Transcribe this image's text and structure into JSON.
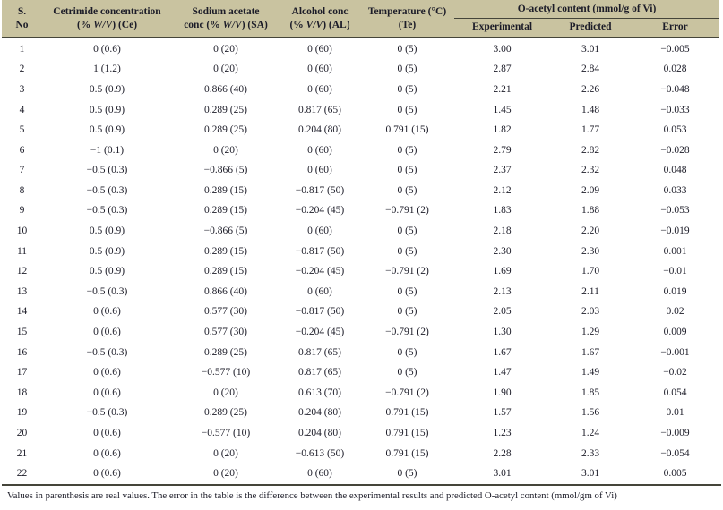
{
  "colors": {
    "header_bg": "#c9c3a0",
    "rule": "#45453a",
    "text": "#1c1c28",
    "body_bg": "#ffffff"
  },
  "table": {
    "header": {
      "col_sno": {
        "line1": "S.",
        "line2": "No"
      },
      "col_ce": {
        "line1": "Cetrimide concentration",
        "l2_pre": "(% ",
        "l2_italic": "W/V",
        "l2_post": ") (Ce)"
      },
      "col_sa": {
        "line1": "Sodium acetate",
        "l2_pre": "conc (% ",
        "l2_italic": "W/V",
        "l2_post": ") (SA)"
      },
      "col_al": {
        "line1": "Alcohol conc",
        "l2_pre": "(% ",
        "l2_italic": "V/V",
        "l2_post": ") (AL)"
      },
      "col_te": {
        "line1": "Temperature (°C)",
        "line2": "(Te)"
      },
      "group_oacetyl": "O-acetyl content (mmol/g of Vi)",
      "sub_experimental": "Experimental",
      "sub_predicted": "Predicted",
      "sub_error": "Error"
    },
    "rows": [
      {
        "sno": "1",
        "ce": "0 (0.6)",
        "sa": "0 (20)",
        "al": "0 (60)",
        "te": "0 (5)",
        "exp": "3.00",
        "pred": "3.01",
        "err": "−0.005"
      },
      {
        "sno": "2",
        "ce": "1 (1.2)",
        "sa": "0 (20)",
        "al": "0 (60)",
        "te": "0 (5)",
        "exp": "2.87",
        "pred": "2.84",
        "err": "0.028"
      },
      {
        "sno": "3",
        "ce": "0.5 (0.9)",
        "sa": "0.866 (40)",
        "al": "0 (60)",
        "te": "0 (5)",
        "exp": "2.21",
        "pred": "2.26",
        "err": "−0.048"
      },
      {
        "sno": "4",
        "ce": "0.5 (0.9)",
        "sa": "0.289 (25)",
        "al": "0.817 (65)",
        "te": "0 (5)",
        "exp": "1.45",
        "pred": "1.48",
        "err": "−0.033"
      },
      {
        "sno": "5",
        "ce": "0.5 (0.9)",
        "sa": "0.289 (25)",
        "al": "0.204 (80)",
        "te": "0.791 (15)",
        "exp": "1.82",
        "pred": "1.77",
        "err": "0.053"
      },
      {
        "sno": "6",
        "ce": "−1 (0.1)",
        "sa": "0 (20)",
        "al": "0 (60)",
        "te": "0 (5)",
        "exp": "2.79",
        "pred": "2.82",
        "err": "−0.028"
      },
      {
        "sno": "7",
        "ce": "−0.5 (0.3)",
        "sa": "−0.866 (5)",
        "al": "0 (60)",
        "te": "0 (5)",
        "exp": "2.37",
        "pred": "2.32",
        "err": "0.048"
      },
      {
        "sno": "8",
        "ce": "−0.5 (0.3)",
        "sa": "0.289 (15)",
        "al": "−0.817 (50)",
        "te": "0 (5)",
        "exp": "2.12",
        "pred": "2.09",
        "err": "0.033"
      },
      {
        "sno": "9",
        "ce": "−0.5 (0.3)",
        "sa": "0.289 (15)",
        "al": "−0.204 (45)",
        "te": "−0.791 (2)",
        "exp": "1.83",
        "pred": "1.88",
        "err": "−0.053"
      },
      {
        "sno": "10",
        "ce": "0.5 (0.9)",
        "sa": "−0.866 (5)",
        "al": "0 (60)",
        "te": "0 (5)",
        "exp": "2.18",
        "pred": "2.20",
        "err": "−0.019"
      },
      {
        "sno": "11",
        "ce": "0.5 (0.9)",
        "sa": "0.289 (15)",
        "al": "−0.817 (50)",
        "te": "0 (5)",
        "exp": "2.30",
        "pred": "2.30",
        "err": "0.001"
      },
      {
        "sno": "12",
        "ce": "0.5 (0.9)",
        "sa": "0.289 (15)",
        "al": "−0.204 (45)",
        "te": "−0.791 (2)",
        "exp": "1.69",
        "pred": "1.70",
        "err": "−0.01"
      },
      {
        "sno": "13",
        "ce": "−0.5 (0.3)",
        "sa": "0.866 (40)",
        "al": "0 (60)",
        "te": "0 (5)",
        "exp": "2.13",
        "pred": "2.11",
        "err": "0.019"
      },
      {
        "sno": "14",
        "ce": "0 (0.6)",
        "sa": "0.577 (30)",
        "al": "−0.817 (50)",
        "te": "0 (5)",
        "exp": "2.05",
        "pred": "2.03",
        "err": "0.02"
      },
      {
        "sno": "15",
        "ce": "0 (0.6)",
        "sa": "0.577 (30)",
        "al": "−0.204 (45)",
        "te": "−0.791 (2)",
        "exp": "1.30",
        "pred": "1.29",
        "err": "0.009"
      },
      {
        "sno": "16",
        "ce": "−0.5 (0.3)",
        "sa": "0.289 (25)",
        "al": "0.817 (65)",
        "te": "0 (5)",
        "exp": "1.67",
        "pred": "1.67",
        "err": "−0.001"
      },
      {
        "sno": "17",
        "ce": "0 (0.6)",
        "sa": "−0.577 (10)",
        "al": "0.817 (65)",
        "te": "0 (5)",
        "exp": "1.47",
        "pred": "1.49",
        "err": "−0.02"
      },
      {
        "sno": "18",
        "ce": "0 (0.6)",
        "sa": "0 (20)",
        "al": "0.613 (70)",
        "te": "−0.791 (2)",
        "exp": "1.90",
        "pred": "1.85",
        "err": "0.054"
      },
      {
        "sno": "19",
        "ce": "−0.5 (0.3)",
        "sa": "0.289 (25)",
        "al": "0.204 (80)",
        "te": "0.791 (15)",
        "exp": "1.57",
        "pred": "1.56",
        "err": "0.01"
      },
      {
        "sno": "20",
        "ce": "0 (0.6)",
        "sa": "−0.577 (10)",
        "al": "0.204 (80)",
        "te": "0.791 (15)",
        "exp": "1.23",
        "pred": "1.24",
        "err": "−0.009"
      },
      {
        "sno": "21",
        "ce": "0 (0.6)",
        "sa": "0 (20)",
        "al": "−0.613 (50)",
        "te": "0.791 (15)",
        "exp": "2.28",
        "pred": "2.33",
        "err": "−0.054"
      },
      {
        "sno": "22",
        "ce": "0 (0.6)",
        "sa": "0 (20)",
        "al": "0 (60)",
        "te": "0 (5)",
        "exp": "3.01",
        "pred": "3.01",
        "err": "0.005"
      }
    ],
    "footnote": "Values in parenthesis are real values. The error in the table is the difference between the experimental results and predicted O-acetyl content (mmol/gm of Vi)"
  }
}
